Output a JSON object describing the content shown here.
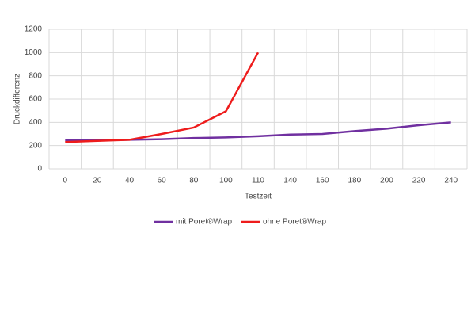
{
  "chart_data": {
    "type": "line",
    "x_label": "Testzeit",
    "y_label": "Druckdifferenz",
    "categories": [
      "0",
      "20",
      "40",
      "60",
      "80",
      "100",
      "110",
      "140",
      "160",
      "180",
      "200",
      "220",
      "240"
    ],
    "series": [
      {
        "name": "mit Poret®Wrap",
        "color": "#7030a0",
        "values": [
          245,
          245,
          250,
          255,
          265,
          270,
          280,
          295,
          300,
          325,
          345,
          375,
          400
        ]
      },
      {
        "name": "ohne Poret®Wrap",
        "color": "#ee1c1c",
        "values": [
          230,
          240,
          250,
          300,
          355,
          495,
          1000,
          null,
          null,
          null,
          null,
          null,
          null
        ]
      }
    ],
    "ylim": [
      0,
      1200
    ],
    "yticks": [
      0,
      200,
      400,
      600,
      800,
      1000,
      1200
    ],
    "grid": true,
    "legend": "bottom"
  }
}
